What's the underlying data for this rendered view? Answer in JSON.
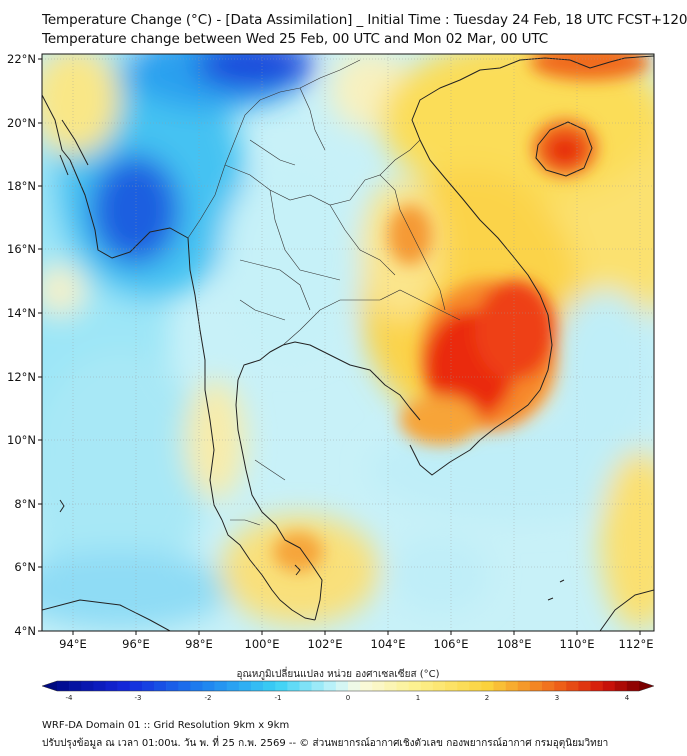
{
  "header": {
    "title_line1": "Temperature Change (°C) - [Data Assimilation] _ Initial Time : Tuesday 24 Feb, 18 UTC FCST+120",
    "title_line2": "Temperature change between Wed 25 Feb, 00 UTC and Mon 02 Mar, 00 UTC"
  },
  "map": {
    "lat_labels": [
      "22°N",
      "20°N",
      "18°N",
      "16°N",
      "14°N",
      "12°N",
      "10°N",
      "8°N",
      "6°N",
      "4°N"
    ],
    "lon_labels": [
      "94°E",
      "96°E",
      "98°E",
      "100°E",
      "102°E",
      "104°E",
      "106°E",
      "108°E",
      "110°E",
      "112°E"
    ],
    "colors": {
      "cold_strong": "#0a1fd0",
      "cold": "#1fa7f0",
      "cold_light": "#8fe4f6",
      "neutral": "#f7f7e6",
      "warm_light": "#fbee8e",
      "warm": "#fbd84a",
      "hot": "#f77c20",
      "hot_strong": "#e61a0e"
    }
  },
  "colorbar": {
    "title": "อุณหภูมิเปลี่ยนแปลง หน่วย องศาเซลเซียส (°C)",
    "tick_labels": [
      "-4",
      "-3",
      "-2",
      "-1",
      "0",
      "1",
      "2",
      "3",
      "4"
    ],
    "min": -4,
    "max": 4
  },
  "footer": {
    "line1": "WRF-DA Domain 01 :: Grid Resolution 9km x 9km",
    "line2": "ปรับปรุงข้อมูล ณ เวลา 01:00น. วัน พ. ที่ 25 ก.พ. 2569 -- © ส่วนพยากรณ์อากาศเชิงตัวเลข กองพยากรณ์อากาศ กรมอุตุนิยมวิทยา"
  }
}
